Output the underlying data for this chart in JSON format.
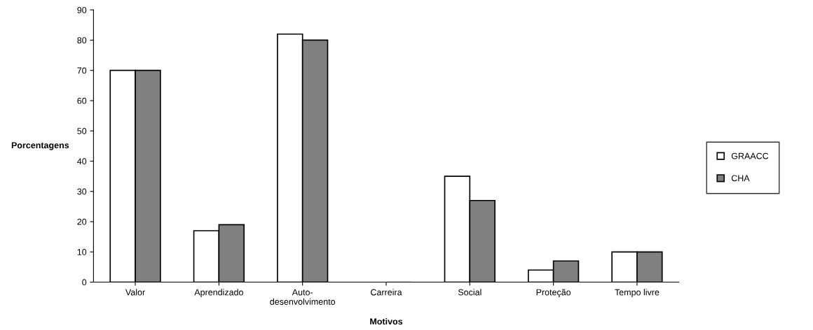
{
  "chart_data": {
    "type": "bar",
    "xlabel": "Motivos",
    "ylabel": "Porcentagens",
    "categories": [
      "Valor",
      "Aprendizado",
      "Auto-\ndesenvolvimento",
      "Carreira",
      "Social",
      "Proteção",
      "Tempo livre"
    ],
    "series": [
      {
        "name": "GRAACC",
        "color": "#ffffff",
        "values": [
          70,
          17,
          82,
          0,
          35,
          4,
          10
        ]
      },
      {
        "name": "CHA",
        "color": "#808080",
        "values": [
          70,
          19,
          80,
          0,
          27,
          7,
          10
        ]
      }
    ],
    "ylim": [
      0,
      90
    ],
    "yticks": [
      0,
      10,
      20,
      30,
      40,
      50,
      60,
      70,
      80,
      90
    ],
    "grid": false,
    "legend": "right"
  }
}
